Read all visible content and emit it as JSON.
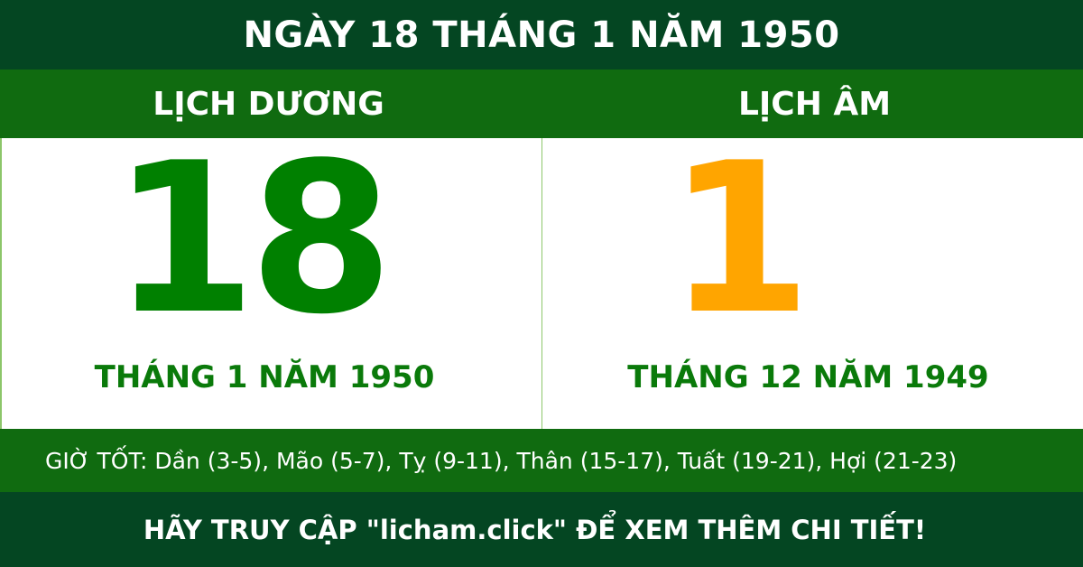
{
  "header": {
    "title": "NGÀY 18 THÁNG 1 NĂM 1950"
  },
  "solar": {
    "label": "LỊCH DƯƠNG",
    "day": "18",
    "month_year": "THÁNG 1 NĂM 1950"
  },
  "lunar": {
    "label": "LỊCH ÂM",
    "day": "1",
    "month_year": "THÁNG 12 NĂM 1949"
  },
  "good_hours": "GIỜ TỐT: Dần (3-5), Mão (5-7), Tỵ (9-11), Thân (15-17), Tuất (19-21), Hợi (21-23)",
  "footer": "HÃY TRUY CẬP \"licham.click\" ĐỂ XEM THÊM CHI TIẾT!",
  "colors": {
    "dark_green": "#044622",
    "band_green": "#106b10",
    "solar_day": "#008000",
    "lunar_day": "#ffa500"
  }
}
